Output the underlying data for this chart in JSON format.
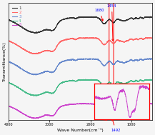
{
  "xlabel": "Wave Number(cm⁻¹)",
  "ylabel": "Transmittance(%)",
  "xlim": [
    4000,
    500
  ],
  "colors": [
    "#333333",
    "#ff6666",
    "#6688cc",
    "#44bb88",
    "#cc44cc"
  ],
  "labels": [
    "1",
    "2",
    "3",
    "4",
    "5"
  ],
  "annotation_1680": "1680",
  "annotation_1454": "1454",
  "annotation_1492": "1492",
  "ann_color": "#0000ff",
  "arr_color": "#ff0000",
  "circle_color": "#ff0000",
  "bg_color": "#f5f5f5",
  "vertical_offsets": [
    3.0,
    2.3,
    1.6,
    0.9,
    0.1
  ],
  "linewidth": 0.55
}
